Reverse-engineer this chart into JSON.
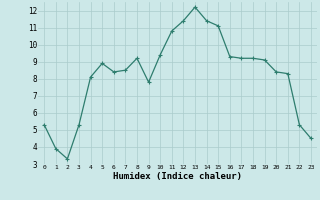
{
  "x": [
    0,
    1,
    2,
    3,
    4,
    5,
    6,
    7,
    8,
    9,
    10,
    11,
    12,
    13,
    14,
    15,
    16,
    17,
    18,
    19,
    20,
    21,
    22,
    23
  ],
  "y": [
    5.3,
    3.9,
    3.3,
    5.3,
    8.1,
    8.9,
    8.4,
    8.5,
    9.2,
    7.8,
    9.4,
    10.8,
    11.4,
    12.2,
    11.4,
    11.1,
    9.3,
    9.2,
    9.2,
    9.1,
    8.4,
    8.3,
    5.3,
    4.5
  ],
  "xlabel": "Humidex (Indice chaleur)",
  "ylim": [
    3,
    12.5
  ],
  "xlim": [
    -0.5,
    23.5
  ],
  "yticks": [
    3,
    4,
    5,
    6,
    7,
    8,
    9,
    10,
    11,
    12
  ],
  "xticks": [
    0,
    1,
    2,
    3,
    4,
    5,
    6,
    7,
    8,
    9,
    10,
    11,
    12,
    13,
    14,
    15,
    16,
    17,
    18,
    19,
    20,
    21,
    22,
    23
  ],
  "line_color": "#2e7d6e",
  "marker_color": "#2e7d6e",
  "bg_color": "#cce8e8",
  "grid_color": "#aacccc",
  "title": ""
}
